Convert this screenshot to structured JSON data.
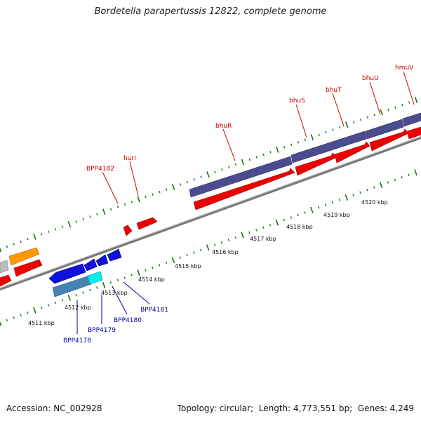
{
  "title": "Bordetella parapertussis 12822, complete genome",
  "footer": {
    "accession_label": "Accession:",
    "accession": "NC_002928",
    "topology_label": "Topology:",
    "topology": "circular",
    "length_label": "Length:",
    "length": "4,773,551 bp",
    "genes_label": "Genes:",
    "genes": "4,249"
  },
  "colors": {
    "forward_red": "#ee0000",
    "purple": "#4b4b8f",
    "blue": "#1111dd",
    "steel_blue": "#4682b4",
    "cyan": "#00eeee",
    "orange": "#ff9900",
    "grey": "#bbbbbb",
    "tick_green": "#117711",
    "label_red": "#cc0000",
    "label_blue": "#000099"
  },
  "scale_labels": [
    "4511 kbp",
    "4512 kbp",
    "4513 kbp",
    "4514 kbp",
    "4515 kbp",
    "4516 kbp",
    "4517 kbp",
    "4518 kbp",
    "4519 kbp",
    "4520 kbp"
  ],
  "gene_labels_top": [
    "BPP4182",
    "hurI",
    "bhuR",
    "bhuS",
    "bhuT",
    "bhuU",
    "hmuV"
  ],
  "gene_labels_bottom": [
    "BPP4178",
    "BPP4179",
    "BPP4180",
    "BPP4181"
  ]
}
